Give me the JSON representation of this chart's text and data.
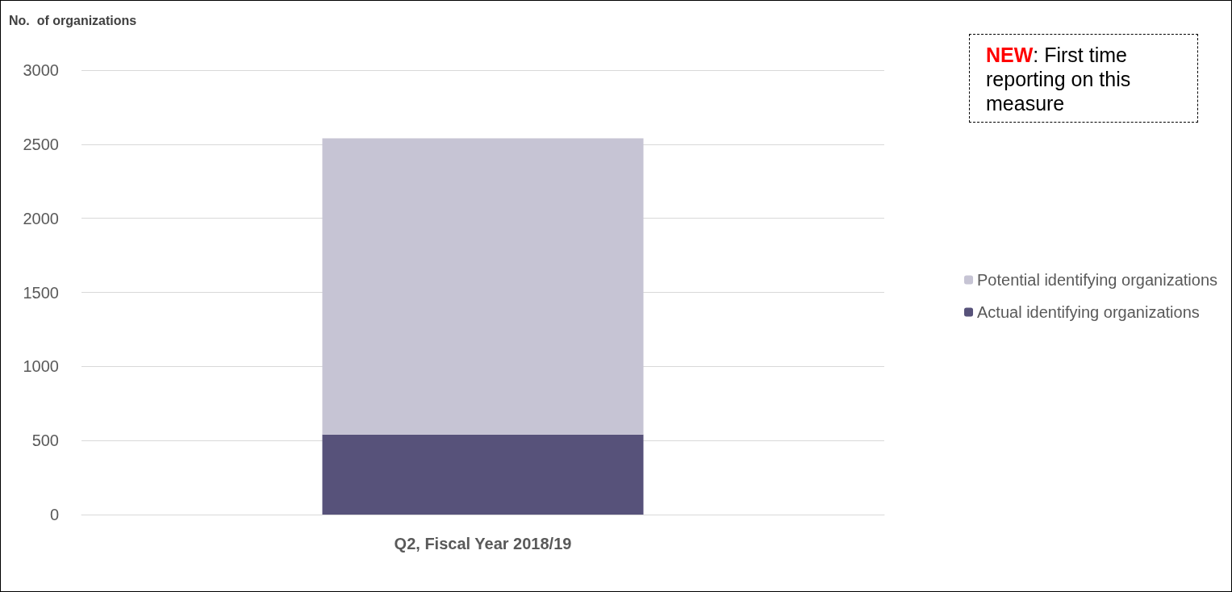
{
  "chart_data": {
    "type": "bar",
    "ylabel": "No.  of organizations",
    "categories": [
      "Q2, Fiscal Year 2018/19"
    ],
    "stacked": true,
    "series": [
      {
        "name": "Actual identifying organizations",
        "color": "#57527a",
        "values": [
          540
        ]
      },
      {
        "name": "Potential identifying organizations",
        "color": "#c6c4d4",
        "values": [
          2000
        ]
      }
    ],
    "ylim": [
      0,
      3000
    ],
    "yticks": [
      0,
      500,
      1000,
      1500,
      2000,
      2500,
      3000
    ],
    "grid": "y",
    "legend": "right",
    "annotations": [
      "NEW: First time reporting on this measure"
    ]
  }
}
